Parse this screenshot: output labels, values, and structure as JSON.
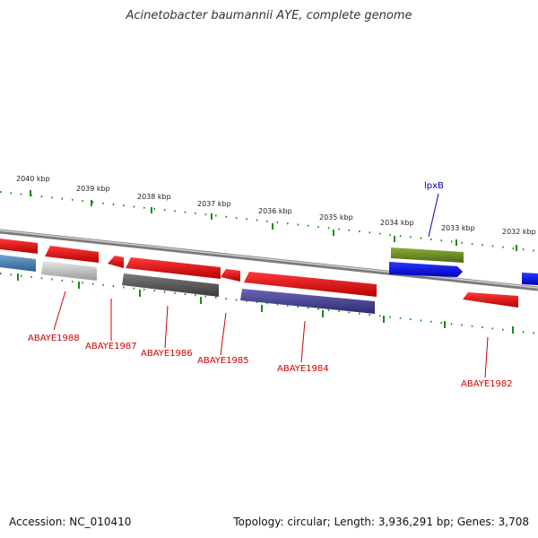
{
  "title": "Acinetobacter baumannii AYE, complete genome",
  "footer": {
    "accession": "Accession: NC_010410",
    "summary": "Topology: circular; Length: 3,936,291 bp; Genes: 3,708"
  },
  "scale": {
    "labels": [
      "2040 kbp",
      "2039 kbp",
      "2038 kbp",
      "2037 kbp",
      "2036 kbp",
      "2035 kbp",
      "2034 kbp",
      "2033 kbp",
      "2032 kbp"
    ]
  },
  "colors": {
    "red_gene": "#ee1c1c",
    "blue_gene": "#0a14ff",
    "green_gene": "#6b8e23",
    "tick": "#1a8a1a",
    "backbone": "#888888"
  },
  "genes": [
    {
      "label": "ABAYE1988",
      "color": "#ee1c1c"
    },
    {
      "label": "ABAYE1987",
      "color": "#ee1c1c"
    },
    {
      "label": "ABAYE1986",
      "color": "#ee1c1c"
    },
    {
      "label": "ABAYE1985",
      "color": "#ee1c1c"
    },
    {
      "label": "ABAYE1984",
      "color": "#ee1c1c"
    },
    {
      "label": "ABAYE1982",
      "color": "#ee1c1c"
    },
    {
      "label": "lpxB",
      "color": "#0000b0"
    }
  ]
}
